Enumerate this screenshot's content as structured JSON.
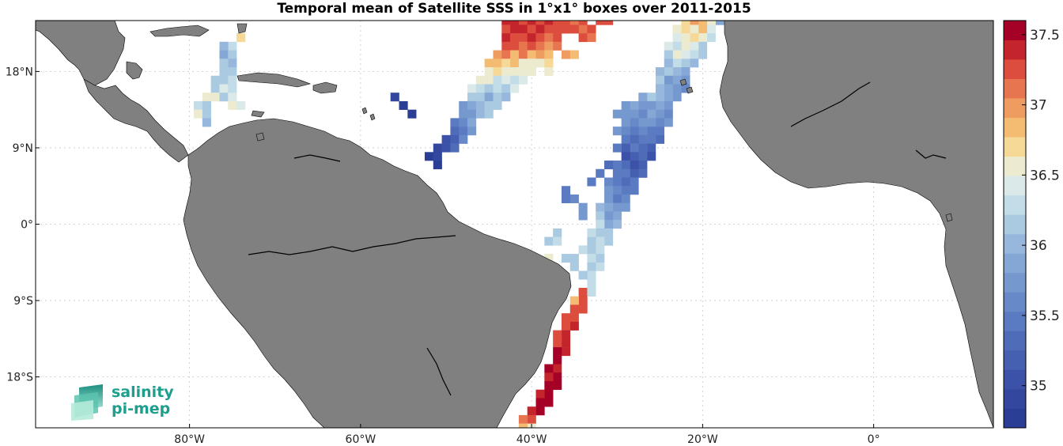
{
  "figure": {
    "title": "Temporal mean of Satellite SSS in 1°x1° boxes over 2011-2015"
  },
  "axes": {
    "lon_range": [
      -98,
      14
    ],
    "lat_range": [
      -24,
      24
    ],
    "x_ticks": [
      {
        "value": -80,
        "label": "80°W"
      },
      {
        "value": -60,
        "label": "60°W"
      },
      {
        "value": -40,
        "label": "40°W"
      },
      {
        "value": -20,
        "label": "20°W"
      },
      {
        "value": 0,
        "label": "0°"
      }
    ],
    "y_ticks": [
      {
        "value": 18,
        "label": "18°N"
      },
      {
        "value": 9,
        "label": "9°N"
      },
      {
        "value": 0,
        "label": "0°"
      },
      {
        "value": -9,
        "label": "9°S"
      },
      {
        "value": -18,
        "label": "18°S"
      }
    ],
    "grid": true
  },
  "colorbar": {
    "min": 34.7,
    "max": 37.6,
    "levels": 20,
    "ticks": [
      {
        "value": 35,
        "label": "35"
      },
      {
        "value": 35.5,
        "label": "35.5"
      },
      {
        "value": 36,
        "label": "36"
      },
      {
        "value": 36.5,
        "label": "36.5"
      },
      {
        "value": 37,
        "label": "37"
      },
      {
        "value": 37.5,
        "label": "37.5"
      }
    ],
    "colors": [
      "#2b3e96",
      "#33479f",
      "#3c52a8",
      "#455fb1",
      "#4f6cb9",
      "#5a7bc1",
      "#6789c8",
      "#7598cf",
      "#85a7d6",
      "#97b8dc",
      "#aacae2",
      "#c2dce8",
      "#dbe9e8",
      "#ecebcf",
      "#f6d897",
      "#f4bc72",
      "#ef9c60",
      "#e77650",
      "#dc4d3d",
      "#c4242c",
      "#a50026"
    ]
  },
  "logo": {
    "line1": "salinity",
    "line2": "pi-mep"
  },
  "map": {
    "land_color": "#808080",
    "ocean_color": "#ffffff"
  },
  "chart_data": {
    "type": "heatmap",
    "title": "Temporal mean of Satellite SSS in 1°x1° boxes over 2011-2015",
    "xlabel": "",
    "ylabel": "",
    "colorbar_range": [
      34.7,
      37.6
    ],
    "cells": [
      [
        -43,
        24,
        37.4
      ],
      [
        -42,
        24,
        37.4
      ],
      [
        -41,
        24,
        37.3
      ],
      [
        -40,
        24,
        37.4
      ],
      [
        -39,
        24,
        37.3
      ],
      [
        -38,
        24,
        37.4
      ],
      [
        -37,
        24,
        37.3
      ],
      [
        -36,
        24,
        37.2
      ],
      [
        -35,
        24,
        37.1
      ],
      [
        -43,
        23,
        37.3
      ],
      [
        -42,
        23,
        37.4
      ],
      [
        -41,
        23,
        37.4
      ],
      [
        -40,
        23,
        37.3
      ],
      [
        -39,
        23,
        37.4
      ],
      [
        -38,
        23,
        37.2
      ],
      [
        -37,
        23,
        37.3
      ],
      [
        -36,
        23,
        37.2
      ],
      [
        -34,
        23,
        37.1
      ],
      [
        -43,
        22,
        37.4
      ],
      [
        -42,
        22,
        37.3
      ],
      [
        -41,
        22,
        37.2
      ],
      [
        -40,
        22,
        37.4
      ],
      [
        -39,
        22,
        37.2
      ],
      [
        -38,
        22,
        37.1
      ],
      [
        -37,
        22,
        37.2
      ],
      [
        -43,
        21,
        37.2
      ],
      [
        -42,
        21,
        37.3
      ],
      [
        -41,
        21,
        37.1
      ],
      [
        -40,
        21,
        37.2
      ],
      [
        -39,
        21,
        37.1
      ],
      [
        -38,
        21,
        37.0
      ],
      [
        -44,
        20,
        37.0
      ],
      [
        -43,
        20,
        37.1
      ],
      [
        -42,
        20,
        36.9
      ],
      [
        -41,
        20,
        37.1
      ],
      [
        -40,
        20,
        36.8
      ],
      [
        -39,
        20,
        37.0
      ],
      [
        -45,
        19,
        36.8
      ],
      [
        -44,
        19,
        36.9
      ],
      [
        -43,
        19,
        36.7
      ],
      [
        -42,
        19,
        36.8
      ],
      [
        -41,
        19,
        36.6
      ],
      [
        -40,
        19,
        36.7
      ],
      [
        -39,
        19,
        36.6
      ],
      [
        -45,
        18,
        36.6
      ],
      [
        -44,
        18,
        36.7
      ],
      [
        -43,
        18,
        36.5
      ],
      [
        -42,
        18,
        36.6
      ],
      [
        -41,
        18,
        36.5
      ],
      [
        -40,
        18,
        36.4
      ],
      [
        -46,
        17,
        36.5
      ],
      [
        -45,
        17,
        36.6
      ],
      [
        -44,
        17,
        36.3
      ],
      [
        -43,
        17,
        36.4
      ],
      [
        -42,
        17,
        36.3
      ],
      [
        -41,
        17,
        36.4
      ],
      [
        -47,
        16,
        36.4
      ],
      [
        -46,
        16,
        36.3
      ],
      [
        -45,
        16,
        36.1
      ],
      [
        -44,
        16,
        36.3
      ],
      [
        -43,
        16,
        36.2
      ],
      [
        -42,
        16,
        36.4
      ],
      [
        -47,
        15,
        36.2
      ],
      [
        -46,
        15,
        36.1
      ],
      [
        -45,
        15,
        35.9
      ],
      [
        -44,
        15,
        36.1
      ],
      [
        -43,
        15,
        36.0
      ],
      [
        -48,
        14,
        35.8
      ],
      [
        -47,
        14,
        35.9
      ],
      [
        -46,
        14,
        36.0
      ],
      [
        -45,
        14,
        36.1
      ],
      [
        -44,
        14,
        36.2
      ],
      [
        -48,
        13,
        35.7
      ],
      [
        -47,
        13,
        35.8
      ],
      [
        -46,
        13,
        36.0
      ],
      [
        -45,
        13,
        36.1
      ],
      [
        -49,
        12,
        35.5
      ],
      [
        -48,
        12,
        35.6
      ],
      [
        -47,
        12,
        35.9
      ],
      [
        -49,
        11,
        35.3
      ],
      [
        -48,
        11,
        35.5
      ],
      [
        -47,
        11,
        35.8
      ],
      [
        -50,
        10,
        35.1
      ],
      [
        -49,
        10,
        35.2
      ],
      [
        -48,
        10,
        35.6
      ],
      [
        -51,
        9,
        34.9
      ],
      [
        -50,
        9,
        35.0
      ],
      [
        -49,
        9,
        35.3
      ],
      [
        -52,
        8,
        34.8
      ],
      [
        -51,
        8,
        34.9
      ],
      [
        -51,
        7,
        34.8
      ],
      [
        -34,
        24,
        37.2
      ],
      [
        -32,
        24,
        37.3
      ],
      [
        -31,
        24,
        37.2
      ],
      [
        -36,
        23,
        37.3
      ],
      [
        -35,
        23,
        37.2
      ],
      [
        -33,
        23,
        37.2
      ],
      [
        -37,
        21,
        37.1
      ],
      [
        -34,
        22,
        37.2
      ],
      [
        -33,
        22,
        37.1
      ],
      [
        -38,
        20,
        36.9
      ],
      [
        -36,
        20,
        37.0
      ],
      [
        -35,
        20,
        36.9
      ],
      [
        -40,
        19,
        36.6
      ],
      [
        -38,
        19,
        36.7
      ],
      [
        -40,
        18,
        36.5
      ],
      [
        -38,
        18,
        36.6
      ],
      [
        -18,
        24,
        35.9
      ],
      [
        -19,
        24,
        36.6
      ],
      [
        -20,
        24,
        36.8
      ],
      [
        -21,
        24,
        37.0
      ],
      [
        -22,
        24,
        36.7
      ],
      [
        -19,
        23,
        36.4
      ],
      [
        -20,
        23,
        36.8
      ],
      [
        -21,
        23,
        36.6
      ],
      [
        -22,
        23,
        36.7
      ],
      [
        -23,
        23,
        36.5
      ],
      [
        -19,
        22,
        36.3
      ],
      [
        -20,
        22,
        36.5
      ],
      [
        -21,
        22,
        36.7
      ],
      [
        -22,
        22,
        36.5
      ],
      [
        -23,
        22,
        36.4
      ],
      [
        -20,
        21,
        36.2
      ],
      [
        -21,
        21,
        36.4
      ],
      [
        -22,
        21,
        36.6
      ],
      [
        -23,
        21,
        36.3
      ],
      [
        -24,
        21,
        36.4
      ],
      [
        -20,
        20,
        36.1
      ],
      [
        -21,
        20,
        36.3
      ],
      [
        -22,
        20,
        36.4
      ],
      [
        -23,
        20,
        36.5
      ],
      [
        -24,
        20,
        36.2
      ],
      [
        -21,
        19,
        36.0
      ],
      [
        -22,
        19,
        36.1
      ],
      [
        -23,
        19,
        36.3
      ],
      [
        -24,
        19,
        36.0
      ],
      [
        -22,
        18,
        35.9
      ],
      [
        -23,
        18,
        36.0
      ],
      [
        -24,
        18,
        36.1
      ],
      [
        -25,
        18,
        36.0
      ],
      [
        -22,
        17,
        35.8
      ],
      [
        -23,
        17,
        35.9
      ],
      [
        -24,
        17,
        35.8
      ],
      [
        -25,
        17,
        36.2
      ],
      [
        -22,
        16,
        35.6
      ],
      [
        -23,
        16,
        35.8
      ],
      [
        -24,
        16,
        35.9
      ],
      [
        -25,
        16,
        36.0
      ],
      [
        -23,
        15,
        35.7
      ],
      [
        -24,
        15,
        35.9
      ],
      [
        -25,
        15,
        36.0
      ],
      [
        -26,
        15,
        36.1
      ],
      [
        -27,
        15,
        35.9
      ],
      [
        -24,
        14,
        35.8
      ],
      [
        -25,
        14,
        35.9
      ],
      [
        -26,
        14,
        35.7
      ],
      [
        -27,
        14,
        35.8
      ],
      [
        -28,
        14,
        35.9
      ],
      [
        -24,
        13,
        35.6
      ],
      [
        -25,
        13,
        35.8
      ],
      [
        -26,
        13,
        35.9
      ],
      [
        -27,
        13,
        35.6
      ],
      [
        -28,
        13,
        35.8
      ],
      [
        -29,
        13,
        35.7
      ],
      [
        -24,
        12,
        35.7
      ],
      [
        -25,
        12,
        35.6
      ],
      [
        -26,
        12,
        35.7
      ],
      [
        -27,
        12,
        35.8
      ],
      [
        -28,
        12,
        35.6
      ],
      [
        -29,
        12,
        35.7
      ],
      [
        -25,
        11,
        35.5
      ],
      [
        -26,
        11,
        35.4
      ],
      [
        -27,
        11,
        35.6
      ],
      [
        -28,
        11,
        35.5
      ],
      [
        -29,
        11,
        35.6
      ],
      [
        -30,
        11,
        35.7
      ],
      [
        -25,
        10,
        35.3
      ],
      [
        -26,
        10,
        35.4
      ],
      [
        -27,
        10,
        35.5
      ],
      [
        -28,
        10,
        35.3
      ],
      [
        -29,
        10,
        35.4
      ],
      [
        -26,
        9,
        35.2
      ],
      [
        -27,
        9,
        35.3
      ],
      [
        -28,
        9,
        35.4
      ],
      [
        -29,
        9,
        35.2
      ],
      [
        -30,
        9,
        35.5
      ],
      [
        -26,
        8,
        35.1
      ],
      [
        -27,
        8,
        35.3
      ],
      [
        -28,
        8,
        35.2
      ],
      [
        -29,
        8,
        35.0
      ],
      [
        -27,
        7,
        35.2
      ],
      [
        -28,
        7,
        35.1
      ],
      [
        -29,
        7,
        35.3
      ],
      [
        -30,
        7,
        35.4
      ],
      [
        -27,
        6,
        35.3
      ],
      [
        -28,
        6,
        35.2
      ],
      [
        -29,
        6,
        35.4
      ],
      [
        -30,
        6,
        35.5
      ],
      [
        -28,
        5,
        35.4
      ],
      [
        -29,
        5,
        35.3
      ],
      [
        -30,
        5,
        35.5
      ],
      [
        -31,
        5,
        35.6
      ],
      [
        -28,
        4,
        35.5
      ],
      [
        -29,
        4,
        35.4
      ],
      [
        -30,
        4,
        35.6
      ],
      [
        -31,
        4,
        35.7
      ],
      [
        -29,
        3,
        35.6
      ],
      [
        -30,
        3,
        35.5
      ],
      [
        -31,
        3,
        35.8
      ],
      [
        -29,
        2,
        35.7
      ],
      [
        -30,
        2,
        35.8
      ],
      [
        -31,
        2,
        35.9
      ],
      [
        -32,
        2,
        36.0
      ],
      [
        -30,
        1,
        35.9
      ],
      [
        -31,
        1,
        35.8
      ],
      [
        -32,
        1,
        36.1
      ],
      [
        -30,
        0,
        36.0
      ],
      [
        -31,
        0,
        35.9
      ],
      [
        -32,
        0,
        36.3
      ],
      [
        -31,
        -1,
        36.1
      ],
      [
        -32,
        -1,
        36.2
      ],
      [
        -33,
        -1,
        36.3
      ],
      [
        -31,
        -2,
        36.2
      ],
      [
        -32,
        -2,
        36.3
      ],
      [
        -33,
        -2,
        36.2
      ],
      [
        -32,
        -3,
        36.3
      ],
      [
        -33,
        -3,
        36.2
      ],
      [
        -34,
        -3,
        36.3
      ],
      [
        -32,
        -4,
        36.2
      ],
      [
        -33,
        -4,
        36.3
      ],
      [
        -32,
        -5,
        36.3
      ],
      [
        -33,
        -5,
        36.2
      ],
      [
        -33,
        -6,
        36.3
      ],
      [
        -34,
        -6,
        36.2
      ],
      [
        -33,
        -7,
        36.3
      ],
      [
        -34,
        -8,
        37.2
      ],
      [
        -33,
        -8,
        36.3
      ],
      [
        -34,
        -9,
        37.3
      ],
      [
        -35,
        -9,
        36.9
      ],
      [
        -34,
        -10,
        37.3
      ],
      [
        -35,
        -10,
        37.2
      ],
      [
        -35,
        -11,
        37.3
      ],
      [
        -36,
        -11,
        37.2
      ],
      [
        -35,
        -12,
        37.4
      ],
      [
        -36,
        -12,
        37.3
      ],
      [
        -36,
        -13,
        37.4
      ],
      [
        -37,
        -13,
        37.3
      ],
      [
        -36,
        -14,
        37.4
      ],
      [
        -37,
        -14,
        37.3
      ],
      [
        -36,
        -15,
        37.4
      ],
      [
        -37,
        -15,
        37.5
      ],
      [
        -37,
        -16,
        37.5
      ],
      [
        -37,
        -17,
        37.4
      ],
      [
        -38,
        -17,
        37.5
      ],
      [
        -37,
        -18,
        37.5
      ],
      [
        -38,
        -18,
        37.4
      ],
      [
        -37,
        -19,
        37.5
      ],
      [
        -38,
        -19,
        37.5
      ],
      [
        -38,
        -20,
        37.5
      ],
      [
        -39,
        -20,
        37.4
      ],
      [
        -38,
        -21,
        37.5
      ],
      [
        -39,
        -21,
        37.5
      ],
      [
        -39,
        -22,
        37.5
      ],
      [
        -40,
        -22,
        37.4
      ],
      [
        -40,
        -23,
        37.3
      ],
      [
        -41,
        -23,
        37.1
      ],
      [
        -40,
        -24,
        36.6
      ],
      [
        -41,
        -24,
        36.8
      ],
      [
        -37,
        -6,
        36.3
      ],
      [
        -38,
        -5,
        36.2
      ],
      [
        -38,
        -4,
        36.6
      ],
      [
        -36,
        -7,
        36.0
      ],
      [
        -35,
        -4,
        36.1
      ],
      [
        -36,
        -4,
        36.2
      ],
      [
        -35,
        -5,
        36.2
      ],
      [
        -37,
        -1,
        36.2
      ],
      [
        -38,
        -2,
        36.1
      ],
      [
        -37,
        -2,
        36.3
      ],
      [
        -35,
        3,
        35.6
      ],
      [
        -36,
        4,
        35.5
      ],
      [
        -34,
        2,
        35.7
      ],
      [
        -34,
        1,
        35.8
      ],
      [
        -36,
        3,
        35.4
      ],
      [
        -33,
        5,
        35.5
      ],
      [
        -32,
        6,
        35.4
      ],
      [
        -31,
        7,
        35.3
      ],
      [
        -30,
        13,
        35.7
      ],
      [
        -29,
        14,
        35.8
      ],
      [
        -74,
        22,
        36.7
      ],
      [
        -75,
        21,
        36.3
      ],
      [
        -76,
        21,
        36.0
      ],
      [
        -76,
        20,
        35.9
      ],
      [
        -75,
        20,
        36.1
      ],
      [
        -75,
        19,
        36.0
      ],
      [
        -76,
        19,
        36.2
      ],
      [
        -76,
        18,
        36.1
      ],
      [
        -75,
        18,
        36.2
      ],
      [
        -77,
        17,
        36.2
      ],
      [
        -76,
        17,
        36.1
      ],
      [
        -75,
        17,
        36.3
      ],
      [
        -77,
        16,
        36.2
      ],
      [
        -76,
        16,
        36.4
      ],
      [
        -75,
        16,
        36.3
      ],
      [
        -78,
        15,
        36.5
      ],
      [
        -77,
        15,
        36.6
      ],
      [
        -76,
        15,
        36.2
      ],
      [
        -75,
        15,
        36.4
      ],
      [
        -79,
        14,
        36.3
      ],
      [
        -78,
        14,
        36.1
      ],
      [
        -75,
        14,
        36.6
      ],
      [
        -74,
        14,
        36.4
      ],
      [
        -79,
        13,
        36.5
      ],
      [
        -78,
        13,
        36.2
      ],
      [
        -78,
        12,
        36.0
      ],
      [
        -56,
        15,
        34.9
      ],
      [
        -55,
        14,
        34.8
      ],
      [
        -54,
        13,
        34.8
      ]
    ]
  }
}
